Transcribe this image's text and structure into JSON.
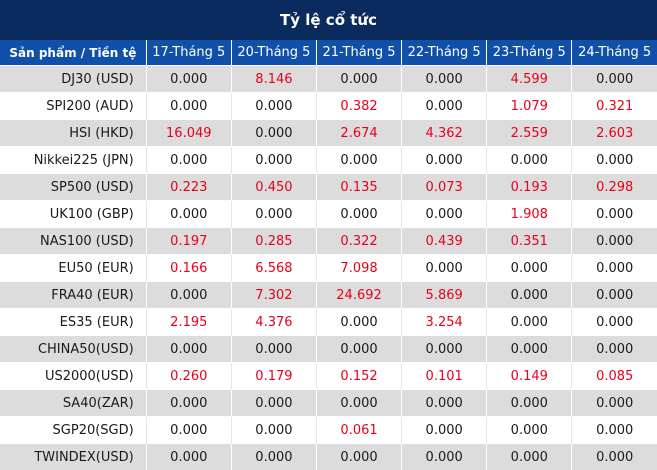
{
  "title": "Tỷ lệ cổ tức",
  "columns": [
    "Sản phẩm / Tiền tệ",
    "17-Tháng 5",
    "20-Tháng 5",
    "21-Tháng 5",
    "22-Tháng 5",
    "23-Tháng 5",
    "24-Tháng 5"
  ],
  "rows": [
    {
      "name": "DJ30 (USD)",
      "values": [
        "0.000",
        "8.146",
        "0.000",
        "0.000",
        "4.599",
        "0.000"
      ]
    },
    {
      "name": "SPI200 (AUD)",
      "values": [
        "0.000",
        "0.000",
        "0.382",
        "0.000",
        "1.079",
        "0.321"
      ]
    },
    {
      "name": "HSI (HKD)",
      "values": [
        "16.049",
        "0.000",
        "2.674",
        "4.362",
        "2.559",
        "2.603"
      ]
    },
    {
      "name": "Nikkei225 (JPN)",
      "values": [
        "0.000",
        "0.000",
        "0.000",
        "0.000",
        "0.000",
        "0.000"
      ]
    },
    {
      "name": "SP500 (USD)",
      "values": [
        "0.223",
        "0.450",
        "0.135",
        "0.073",
        "0.193",
        "0.298"
      ]
    },
    {
      "name": "UK100 (GBP)",
      "values": [
        "0.000",
        "0.000",
        "0.000",
        "0.000",
        "1.908",
        "0.000"
      ]
    },
    {
      "name": "NAS100 (USD)",
      "values": [
        "0.197",
        "0.285",
        "0.322",
        "0.439",
        "0.351",
        "0.000"
      ]
    },
    {
      "name": "EU50 (EUR)",
      "values": [
        "0.166",
        "6.568",
        "7.098",
        "0.000",
        "0.000",
        "0.000"
      ]
    },
    {
      "name": "FRA40 (EUR)",
      "values": [
        "0.000",
        "7.302",
        "24.692",
        "5.869",
        "0.000",
        "0.000"
      ]
    },
    {
      "name": "ES35 (EUR)",
      "values": [
        "2.195",
        "4.376",
        "0.000",
        "3.254",
        "0.000",
        "0.000"
      ]
    },
    {
      "name": "CHINA50(USD)",
      "values": [
        "0.000",
        "0.000",
        "0.000",
        "0.000",
        "0.000",
        "0.000"
      ]
    },
    {
      "name": "US2000(USD)",
      "values": [
        "0.260",
        "0.179",
        "0.152",
        "0.101",
        "0.149",
        "0.085"
      ]
    },
    {
      "name": "SA40(ZAR)",
      "values": [
        "0.000",
        "0.000",
        "0.000",
        "0.000",
        "0.000",
        "0.000"
      ]
    },
    {
      "name": "SGP20(SGD)",
      "values": [
        "0.000",
        "0.000",
        "0.061",
        "0.000",
        "0.000",
        "0.000"
      ]
    },
    {
      "name": "TWINDEX(USD)",
      "values": [
        "0.000",
        "0.000",
        "0.000",
        "0.000",
        "0.000",
        "0.000"
      ]
    }
  ],
  "colors": {
    "title_bg": "#0b2a5e",
    "header_bg": "#1050a8",
    "row_alt_bg": "#dcdcdc",
    "positive_value": "#e8001c",
    "zero_value": "#1a1a1a"
  }
}
